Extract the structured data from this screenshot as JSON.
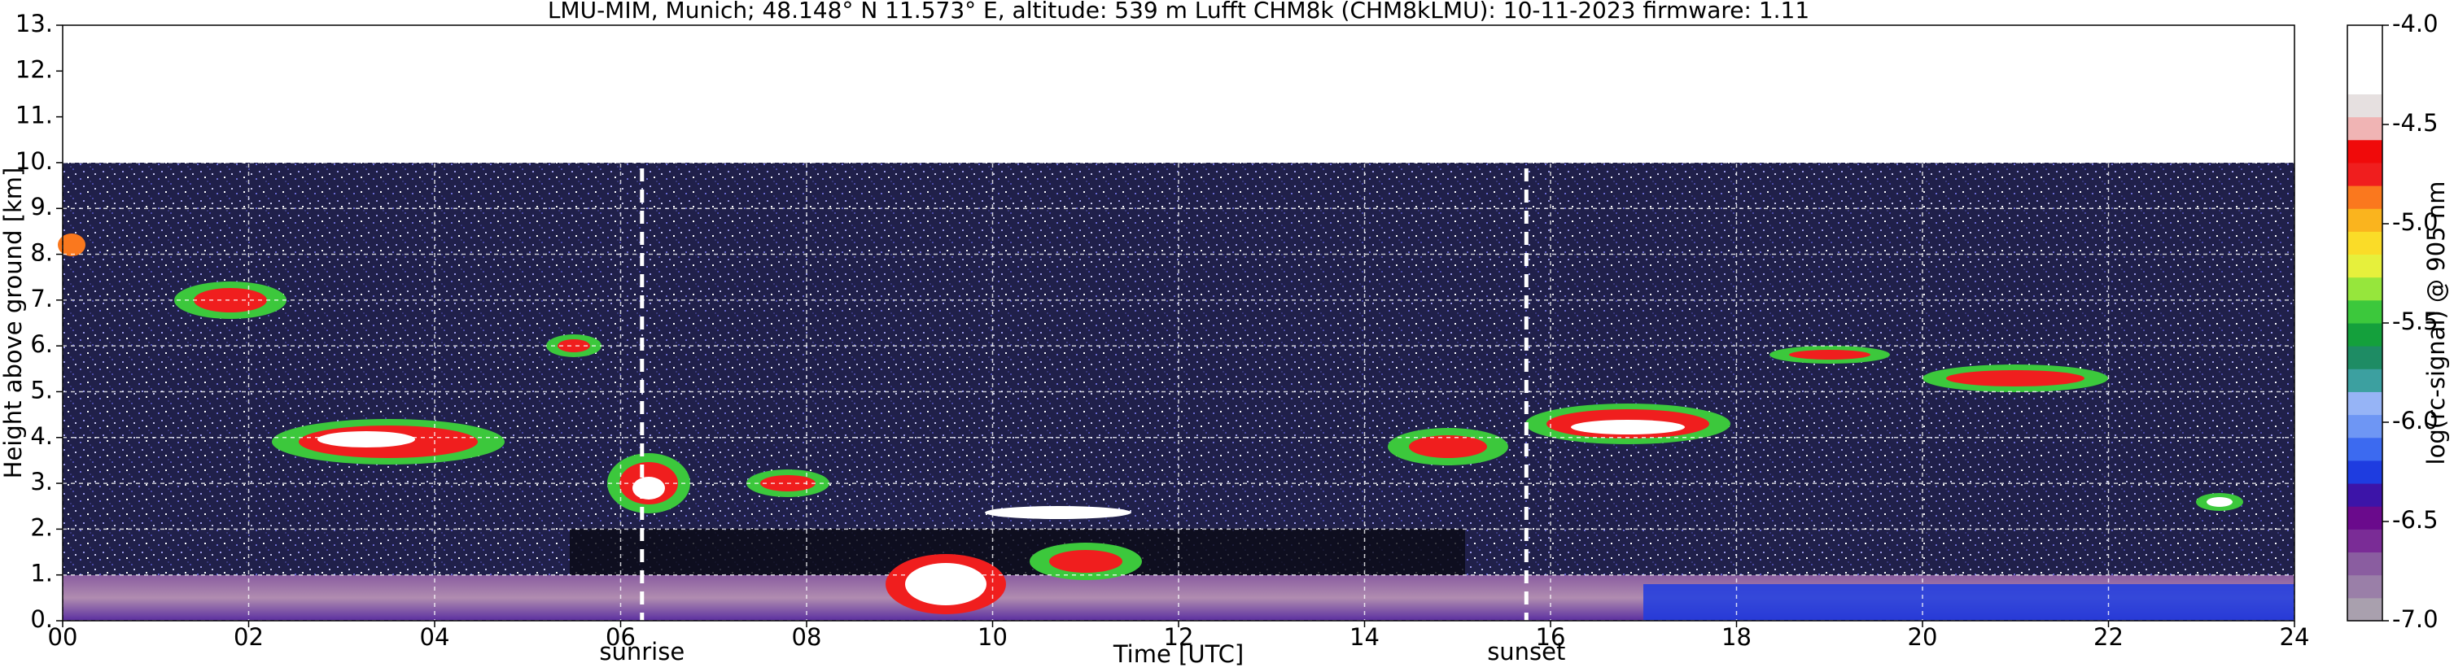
{
  "chart_data": {
    "type": "heatmap",
    "title": "LMU-MIM, Munich; 48.148° N 11.573° E, altitude: 539 m    Lufft CHM8k (CHM8kLMU): 10-11-2023    firmware: 1.11",
    "x_label": "Time [UTC]",
    "y_label": "Height above ground [km]",
    "colorbar_label": "log(rc-signal) @ 905 nm",
    "xlim": [
      0,
      24
    ],
    "xticks": [
      {
        "value": 0,
        "label": "00"
      },
      {
        "value": 2,
        "label": "02"
      },
      {
        "value": 4,
        "label": "04"
      },
      {
        "value": 6,
        "label": "06"
      },
      {
        "value": 8,
        "label": "08"
      },
      10,
      12,
      14,
      16,
      18,
      20,
      22,
      24
    ],
    "ylim": [
      0,
      13
    ],
    "yticks": [
      {
        "value": 0,
        "label": "0."
      },
      {
        "value": 1,
        "label": "1."
      },
      {
        "value": 2,
        "label": "2."
      },
      {
        "value": 3,
        "label": "3."
      },
      {
        "value": 4,
        "label": "4."
      },
      {
        "value": 5,
        "label": "5."
      },
      {
        "value": 6,
        "label": "6."
      },
      {
        "value": 7,
        "label": "7."
      },
      {
        "value": 8,
        "label": "8."
      },
      {
        "value": 9,
        "label": "9."
      },
      {
        "value": 10,
        "label": "10."
      },
      {
        "value": 11,
        "label": "11."
      },
      {
        "value": 12,
        "label": "12."
      },
      {
        "value": 13,
        "label": "13."
      }
    ],
    "clim": [
      -7,
      -4
    ],
    "cticks": [
      {
        "value": -7,
        "label": "-7.0"
      },
      {
        "value": -6.5,
        "label": "-6.5"
      },
      {
        "value": -6,
        "label": "-6.0"
      },
      {
        "value": -5.5,
        "label": "-5.5"
      },
      {
        "value": -5,
        "label": "-5.0"
      },
      {
        "value": -4.5,
        "label": "-4.5"
      },
      {
        "value": -4,
        "label": "-4.0"
      }
    ],
    "colormap": [
      "#a9a0ae",
      "#9a7fa8",
      "#8a5da0",
      "#7a2c96",
      "#6a0a8c",
      "#3c14a8",
      "#1e3ce0",
      "#3c6af0",
      "#6e96f4",
      "#96b4f6",
      "#3ca0a0",
      "#1e8c64",
      "#14a03c",
      "#3cc83c",
      "#96e63c",
      "#e6f03c",
      "#fadc28",
      "#fab41e",
      "#fa781e",
      "#f01e1e",
      "#f00a0a",
      "#f0b4b4",
      "#e6e0e0",
      "#ffffff",
      "#ffffff",
      "#ffffff"
    ],
    "annotations": [
      {
        "x": 6.23,
        "text": "sunrise"
      },
      {
        "x": 15.74,
        "text": "sunset"
      }
    ],
    "grid": true
  }
}
